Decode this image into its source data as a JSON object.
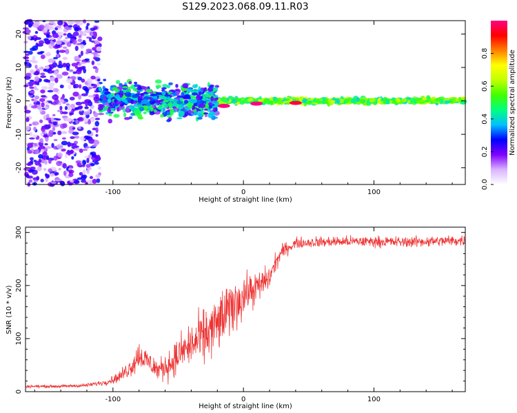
{
  "figure": {
    "title": "S129.2023.068.09.11.R03"
  },
  "chart_data": [
    {
      "type": "heatmap",
      "xlabel": "Height of straight line (km)",
      "ylabel": "Frequency (Hz)",
      "xlim": [
        -167,
        170
      ],
      "ylim": [
        -25,
        24
      ],
      "x_ticks": [
        -100,
        0,
        100
      ],
      "y_ticks": [
        20,
        10,
        0,
        -10,
        -20
      ],
      "description_of_signal": [
        {
          "x_range": [
            -167,
            -110
          ],
          "freq_range": [
            -25,
            24
          ],
          "amplitude": 0.15,
          "pattern": "scattered noise"
        },
        {
          "x_range": [
            -110,
            -20
          ],
          "freq_center": 0,
          "freq_halfwidth": 7,
          "amplitude": 0.35,
          "pattern": "broadening"
        },
        {
          "x_range": [
            -20,
            170
          ],
          "freq_center": 0,
          "freq_halfwidth": 1,
          "amplitude": 0.7,
          "pattern": "narrow line"
        }
      ],
      "peaks": [
        {
          "x": -15,
          "y": -1.5,
          "amplitude": 1.0
        },
        {
          "x": 10,
          "y": -0.8,
          "amplitude": 1.0
        },
        {
          "x": 40,
          "y": -0.6,
          "amplitude": 0.95
        }
      ],
      "colorbar": {
        "label": "Normalized spectral amplitude",
        "range": [
          0.0,
          1.0
        ],
        "ticks": [
          0.0,
          0.2,
          0.4,
          0.6,
          0.8
        ],
        "colors": [
          "#ffffff",
          "#d9b3ff",
          "#8000ff",
          "#0000ff",
          "#00c0ff",
          "#00ff80",
          "#40ff00",
          "#c0ff00",
          "#ffff00",
          "#ff8000",
          "#ff0000",
          "#ff0080"
        ]
      }
    },
    {
      "type": "line",
      "xlabel": "Height of straight line (km)",
      "ylabel": "SNR (10 * v/v)",
      "xlim": [
        -167,
        170
      ],
      "ylim": [
        0,
        310
      ],
      "x_ticks": [
        -100,
        0,
        100
      ],
      "y_ticks": [
        0,
        100,
        200,
        300
      ],
      "color": "#ee3333",
      "series": [
        {
          "x": [
            -167,
            -140,
            -120,
            -105,
            -95,
            -85,
            -80,
            -75,
            -65,
            -55,
            -45,
            -35,
            -25,
            -15,
            -5,
            5,
            10,
            15,
            20,
            25,
            30,
            40,
            60,
            80,
            100,
            120,
            140,
            170
          ],
          "values": [
            10,
            10,
            12,
            18,
            28,
            50,
            70,
            60,
            40,
            55,
            80,
            95,
            115,
            140,
            170,
            190,
            195,
            205,
            215,
            245,
            265,
            280,
            282,
            283,
            283,
            282,
            283,
            285
          ],
          "noise_amplitude": [
            4,
            4,
            5,
            8,
            15,
            30,
            40,
            35,
            30,
            45,
            55,
            70,
            80,
            80,
            70,
            50,
            45,
            40,
            35,
            25,
            20,
            15,
            15,
            15,
            15,
            15,
            15,
            15
          ]
        }
      ]
    }
  ]
}
